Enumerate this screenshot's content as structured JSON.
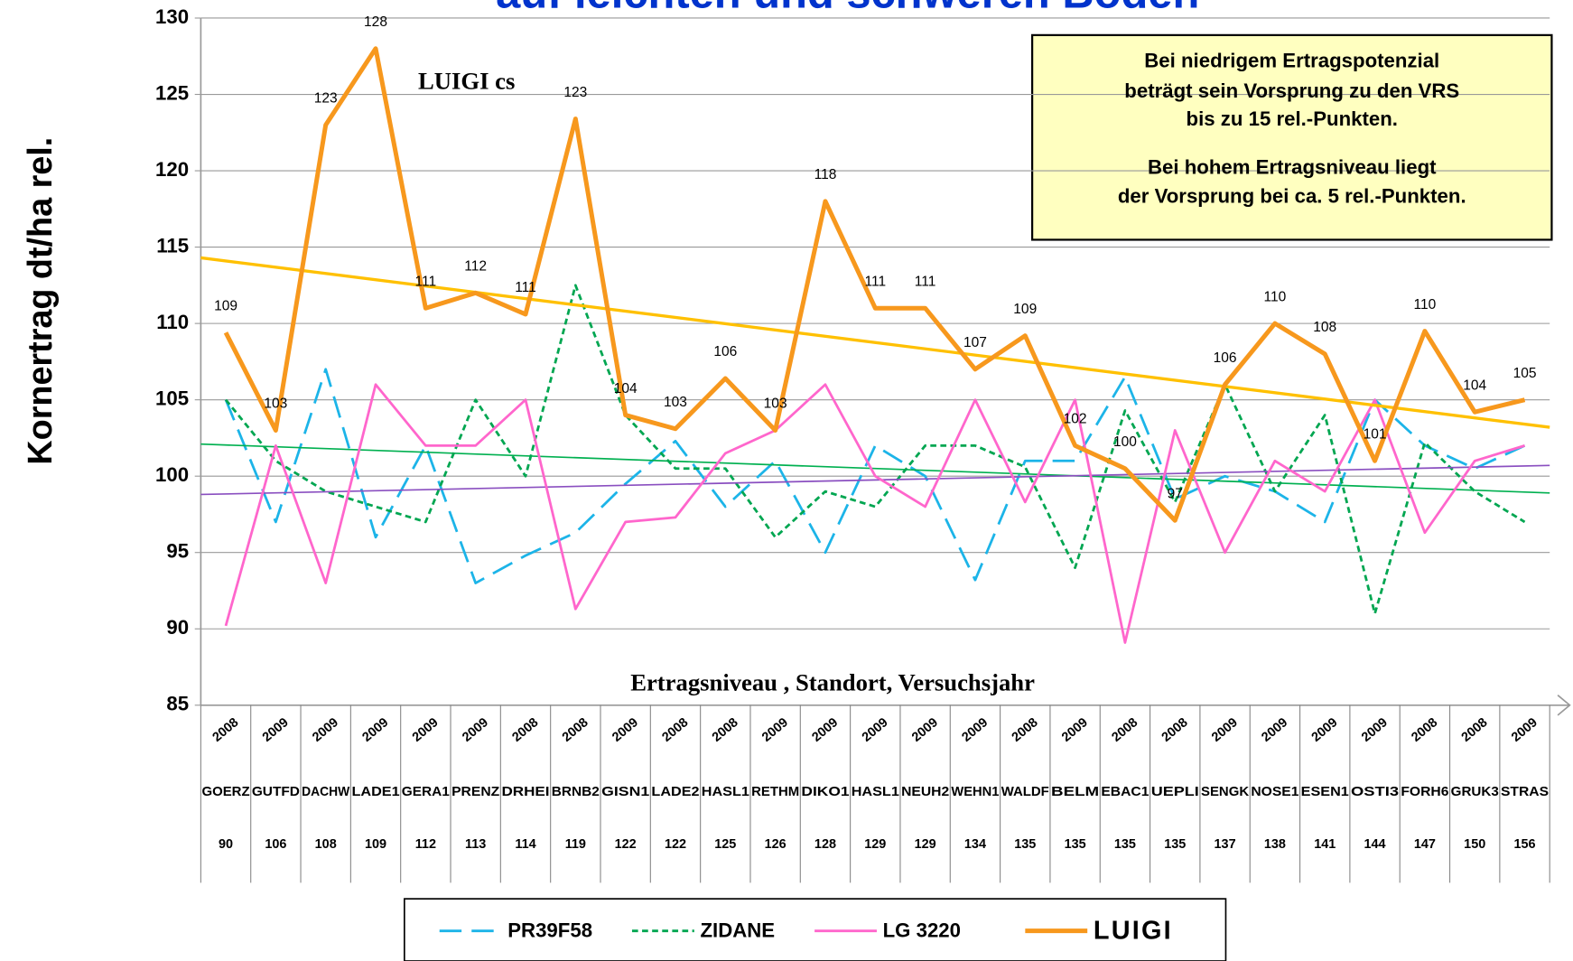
{
  "chart_data": {
    "type": "line",
    "title": "auf leichten und schweren Boden",
    "y_label": "Kornertrag dt/ha rel.",
    "x_label": "Ertragsniveau , Standort, Versuchsjahr",
    "annotation": "LUIGI cs",
    "note_lines": [
      "Bei niedrigem Ertragspotenzial",
      "beträgt sein Vorsprung zu den VRS",
      "bis zu 15 rel.-Punkten.",
      "Bei hohem Ertragsniveau liegt",
      "der Vorsprung bei ca. 5 rel.-Punkten."
    ],
    "categories": [
      "GOERZ",
      "GUTFD",
      "DACHW",
      "LADE1",
      "GERA1",
      "PRENZ",
      "DRHEI",
      "BRNB2",
      "GISN1",
      "LADE2",
      "HASL1",
      "RETHM",
      "DIKO1",
      "HASL1",
      "NEUH2",
      "WEHN1",
      "WALDF",
      "BELM",
      "EBAC1",
      "UEPLI",
      "SENGK",
      "NOSE1",
      "ESEN1",
      "OSTI3",
      "FORH6",
      "GRUK3",
      "STRAS"
    ],
    "category_years": [
      "2008",
      "2009",
      "2009",
      "2009",
      "2009",
      "2009",
      "2008",
      "2008",
      "2009",
      "2008",
      "2008",
      "2009",
      "2009",
      "2009",
      "2009",
      "2009",
      "2008",
      "2009",
      "2008",
      "2008",
      "2009",
      "2009",
      "2009",
      "2009",
      "2008",
      "2008",
      "2009"
    ],
    "category_levels": [
      90,
      106,
      108,
      109,
      112,
      113,
      114,
      119,
      122,
      122,
      125,
      126,
      128,
      129,
      129,
      134,
      135,
      135,
      135,
      135,
      137,
      138,
      141,
      144,
      147,
      150,
      156
    ],
    "ylim": [
      85,
      130
    ],
    "yticks": [
      85,
      90,
      95,
      100,
      105,
      110,
      115,
      120,
      125,
      130
    ],
    "grid": true,
    "series": [
      {
        "name": "PR39F58",
        "color": "#1cb4e8",
        "dash": "22,10",
        "width": 2.5,
        "values": [
          105,
          97,
          107,
          96,
          102,
          93,
          94.8,
          96.3,
          99.5,
          102.3,
          98,
          101,
          95,
          102,
          100,
          93.2,
          101,
          101,
          106.5,
          98.5,
          100,
          99,
          97,
          105,
          102,
          100.5,
          102
        ]
      },
      {
        "name": "ZIDANE",
        "color": "#00a651",
        "dash": "6,4",
        "width": 2.5,
        "values": [
          105,
          101,
          99,
          98,
          97,
          105,
          100,
          112.5,
          104,
          100.5,
          100.5,
          96,
          99,
          98,
          102,
          102,
          100.6,
          94,
          104.3,
          98.3,
          106,
          99,
          104,
          91,
          102.2,
          99,
          97
        ],
        "trend": [
          102.1,
          98.9
        ],
        "trend_color": "#00b050"
      },
      {
        "name": "LG 3220",
        "color": "#ff66cc",
        "dash": "",
        "width": 2.5,
        "values": [
          90.2,
          102,
          93,
          106,
          102,
          102,
          105,
          91.3,
          97,
          97.3,
          101.5,
          103,
          106,
          100,
          98,
          105,
          98.3,
          105,
          89.1,
          103,
          95,
          101,
          99,
          105,
          96.3,
          101,
          102
        ],
        "trend": [
          98.8,
          100.7
        ],
        "trend_color": "#8a4fc0"
      },
      {
        "name": "LUIGI",
        "color": "#f7981d",
        "dash": "",
        "width": 4.5,
        "values": [
          109.4,
          103,
          123,
          128,
          111,
          112,
          110.6,
          123.4,
          104,
          103.1,
          106.4,
          103,
          118,
          111,
          111,
          107,
          109.2,
          102,
          100.5,
          97.1,
          106,
          110,
          108,
          101,
          109.5,
          104.2,
          105
        ],
        "value_labels": [
          "109",
          "103",
          "123",
          "128",
          "111",
          "112",
          "111",
          "123",
          "104",
          "103",
          "106",
          "103",
          "118",
          "111",
          "111",
          "107",
          "109",
          "102",
          "100",
          "97",
          "106",
          "110",
          "108",
          "101",
          "110",
          "104",
          "105"
        ],
        "trend": [
          114.3,
          103.2
        ],
        "trend_color": "#ffc000"
      }
    ]
  }
}
